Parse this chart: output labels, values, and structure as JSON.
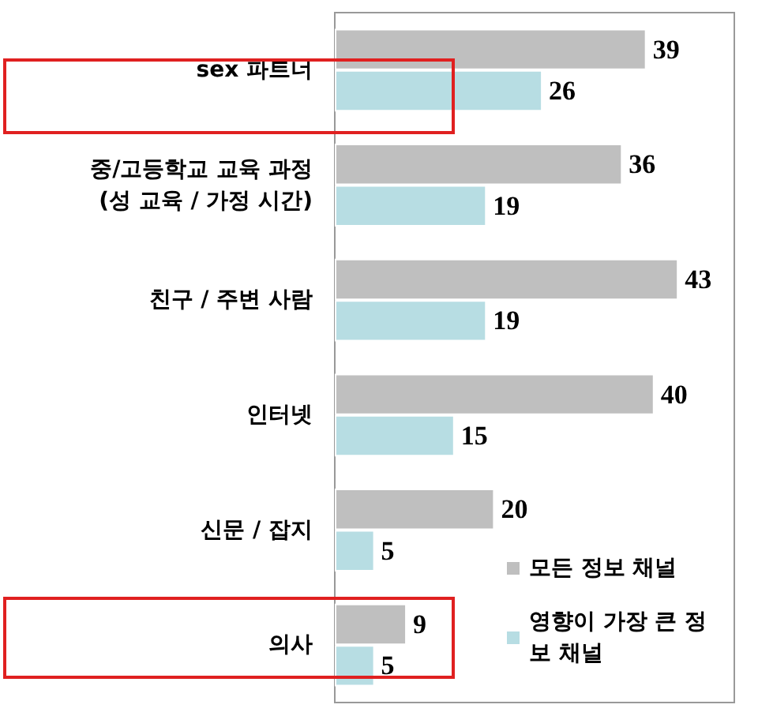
{
  "chart_data": {
    "type": "bar",
    "orientation": "horizontal",
    "categories": [
      "sex 파트너",
      "중/고등학교 교육 과정\n(성 교육 / 가정 시간)",
      "친구 / 주변 사람",
      "인터넷",
      "신문 / 잡지",
      "의사"
    ],
    "series": [
      {
        "name": "모든 정보 채널",
        "color": "#bfbfbf",
        "values": [
          39,
          36,
          43,
          40,
          20,
          9
        ]
      },
      {
        "name": "영향이 가장 큰 정보 채널",
        "color": "#b7dde3",
        "values": [
          26,
          19,
          19,
          15,
          5,
          5
        ]
      }
    ],
    "data_labels": true,
    "legend": "bottom right",
    "grid": false
  }
}
